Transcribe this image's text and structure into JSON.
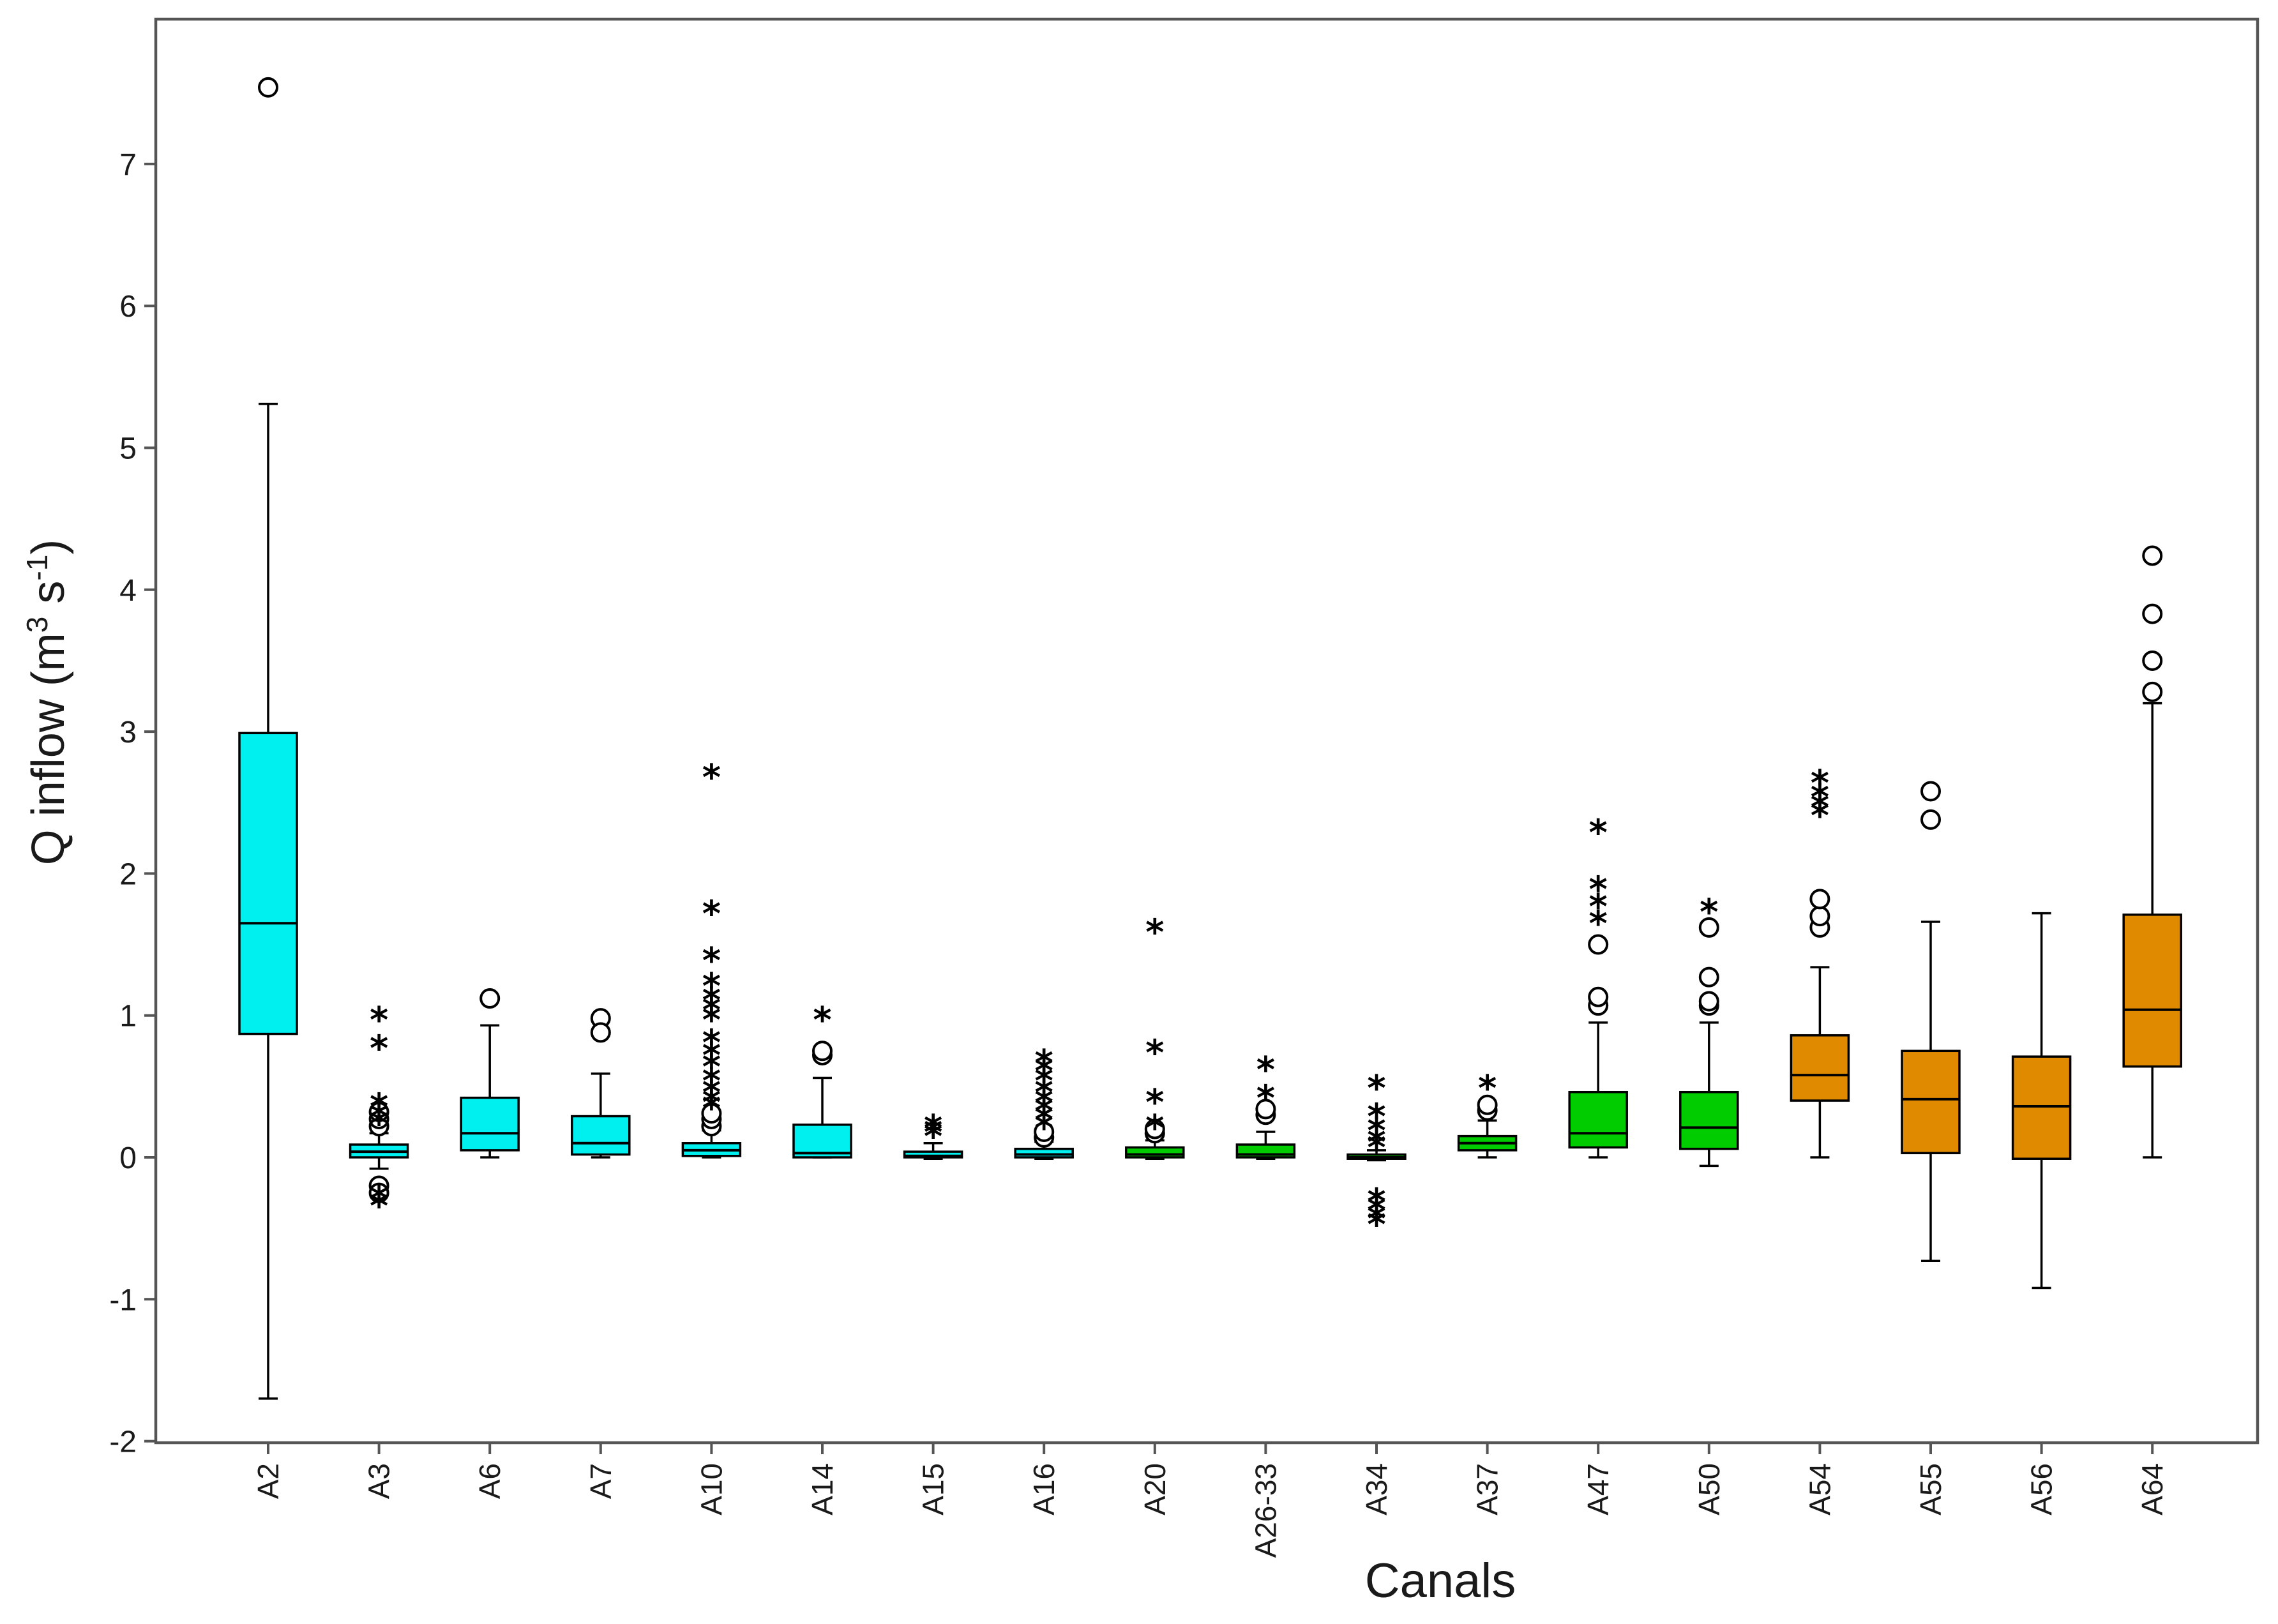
{
  "chart_data": {
    "type": "boxplot",
    "title": "",
    "xlabel": "Canals",
    "ylabel": {
      "main": "Q inflow (m",
      "sup1": "3",
      "mid": " s",
      "sup2": "-1",
      "end": ")"
    },
    "ylim": [
      -2,
      7.9
    ],
    "yticks": [
      -2,
      -1,
      0,
      1,
      2,
      3,
      4,
      5,
      6,
      7
    ],
    "colors": {
      "cyan": "#00f0f0",
      "green": "#00cc00",
      "orange": "#e08a00"
    },
    "categories": [
      "A2",
      "A3",
      "A6",
      "A7",
      "A10",
      "A14",
      "A15",
      "A16",
      "A20",
      "A26-33",
      "A34",
      "A37",
      "A47",
      "A50",
      "A54",
      "A55",
      "A56",
      "A64"
    ],
    "boxes": [
      {
        "label": "A2",
        "color": "cyan",
        "whisker_low": -1.7,
        "q1": 0.87,
        "median": 1.65,
        "q3": 2.99,
        "whisker_high": 5.31,
        "outliers_circle": [
          7.54
        ],
        "outliers_star": []
      },
      {
        "label": "A3",
        "color": "cyan",
        "whisker_low": -0.08,
        "q1": 0.0,
        "median": 0.04,
        "q3": 0.09,
        "whisker_high": 0.17,
        "outliers_circle": [
          0.22,
          0.27,
          0.32,
          -0.2,
          -0.25
        ],
        "outliers_star": [
          0.98,
          0.78,
          0.37,
          0.3,
          0.25,
          -0.28,
          -0.33
        ]
      },
      {
        "label": "A6",
        "color": "cyan",
        "whisker_low": 0.0,
        "q1": 0.05,
        "median": 0.17,
        "q3": 0.42,
        "whisker_high": 0.93,
        "outliers_circle": [
          1.12
        ],
        "outliers_star": []
      },
      {
        "label": "A7",
        "color": "cyan",
        "whisker_low": 0.0,
        "q1": 0.02,
        "median": 0.1,
        "q3": 0.29,
        "whisker_high": 0.59,
        "outliers_circle": [
          0.98,
          0.88
        ],
        "outliers_star": []
      },
      {
        "label": "A10",
        "color": "cyan",
        "whisker_low": 0.0,
        "q1": 0.01,
        "median": 0.05,
        "q3": 0.1,
        "whisker_high": 0.19,
        "outliers_circle": [
          0.22,
          0.27,
          0.31
        ],
        "outliers_star": [
          2.69,
          1.73,
          1.4,
          1.22,
          1.12,
          1.05,
          0.98,
          0.82,
          0.73,
          0.65,
          0.55,
          0.47,
          0.4,
          0.36
        ]
      },
      {
        "label": "A14",
        "color": "cyan",
        "whisker_low": 0.0,
        "q1": 0.0,
        "median": 0.03,
        "q3": 0.23,
        "whisker_high": 0.56,
        "outliers_circle": [
          0.72,
          0.75
        ],
        "outliers_star": [
          0.98
        ]
      },
      {
        "label": "A15",
        "color": "cyan",
        "whisker_low": -0.01,
        "q1": 0.0,
        "median": 0.01,
        "q3": 0.04,
        "whisker_high": 0.1,
        "outliers_circle": [],
        "outliers_star": [
          0.22,
          0.19,
          0.16
        ]
      },
      {
        "label": "A16",
        "color": "cyan",
        "whisker_low": -0.01,
        "q1": 0.0,
        "median": 0.02,
        "q3": 0.06,
        "whisker_high": 0.11,
        "outliers_circle": [
          0.14,
          0.18
        ],
        "outliers_star": [
          0.68,
          0.62,
          0.55,
          0.47,
          0.4,
          0.34,
          0.28,
          0.22
        ]
      },
      {
        "label": "A20",
        "color": "green",
        "whisker_low": -0.01,
        "q1": 0.0,
        "median": 0.02,
        "q3": 0.07,
        "whisker_high": 0.12,
        "outliers_circle": [
          0.17,
          0.2
        ],
        "outliers_star": [
          1.6,
          0.75,
          0.4,
          0.22
        ]
      },
      {
        "label": "A26-33",
        "color": "green",
        "whisker_low": -0.01,
        "q1": 0.0,
        "median": 0.02,
        "q3": 0.09,
        "whisker_high": 0.18,
        "outliers_circle": [
          0.3,
          0.34
        ],
        "outliers_star": [
          0.63,
          0.43
        ]
      },
      {
        "label": "A34",
        "color": "green",
        "whisker_low": -0.02,
        "q1": -0.01,
        "median": 0.0,
        "q3": 0.02,
        "whisker_high": 0.05,
        "outliers_circle": [],
        "outliers_star": [
          0.5,
          0.3,
          0.2,
          0.12,
          0.08,
          -0.3,
          -0.36,
          -0.42,
          -0.46
        ]
      },
      {
        "label": "A37",
        "color": "green",
        "whisker_low": 0.0,
        "q1": 0.05,
        "median": 0.1,
        "q3": 0.15,
        "whisker_high": 0.26,
        "outliers_circle": [
          0.33,
          0.37
        ],
        "outliers_star": [
          0.5
        ]
      },
      {
        "label": "A47",
        "color": "green",
        "whisker_low": 0.0,
        "q1": 0.07,
        "median": 0.17,
        "q3": 0.46,
        "whisker_high": 0.95,
        "outliers_circle": [
          1.07,
          1.13,
          1.5
        ],
        "outliers_star": [
          2.3,
          1.9,
          1.78,
          1.66
        ]
      },
      {
        "label": "A50",
        "color": "green",
        "whisker_low": -0.06,
        "q1": 0.06,
        "median": 0.21,
        "q3": 0.46,
        "whisker_high": 0.95,
        "outliers_circle": [
          1.07,
          1.1,
          1.27,
          1.62
        ],
        "outliers_star": [
          1.74
        ]
      },
      {
        "label": "A54",
        "color": "orange",
        "whisker_low": 0.0,
        "q1": 0.4,
        "median": 0.58,
        "q3": 0.86,
        "whisker_high": 1.34,
        "outliers_circle": [
          1.62,
          1.7,
          1.82
        ],
        "outliers_star": [
          2.65,
          2.55,
          2.48,
          2.42
        ]
      },
      {
        "label": "A55",
        "color": "orange",
        "whisker_low": -0.73,
        "q1": 0.03,
        "median": 0.41,
        "q3": 0.75,
        "whisker_high": 1.66,
        "outliers_circle": [
          2.38,
          2.58
        ],
        "outliers_star": []
      },
      {
        "label": "A56",
        "color": "orange",
        "whisker_low": -0.92,
        "q1": -0.01,
        "median": 0.36,
        "q3": 0.71,
        "whisker_high": 1.72,
        "outliers_circle": [],
        "outliers_star": []
      },
      {
        "label": "A64",
        "color": "orange",
        "whisker_low": 0.0,
        "q1": 0.64,
        "median": 1.04,
        "q3": 1.71,
        "whisker_high": 3.2,
        "outliers_circle": [
          3.28,
          3.5,
          3.83,
          4.24
        ],
        "outliers_star": []
      }
    ]
  }
}
